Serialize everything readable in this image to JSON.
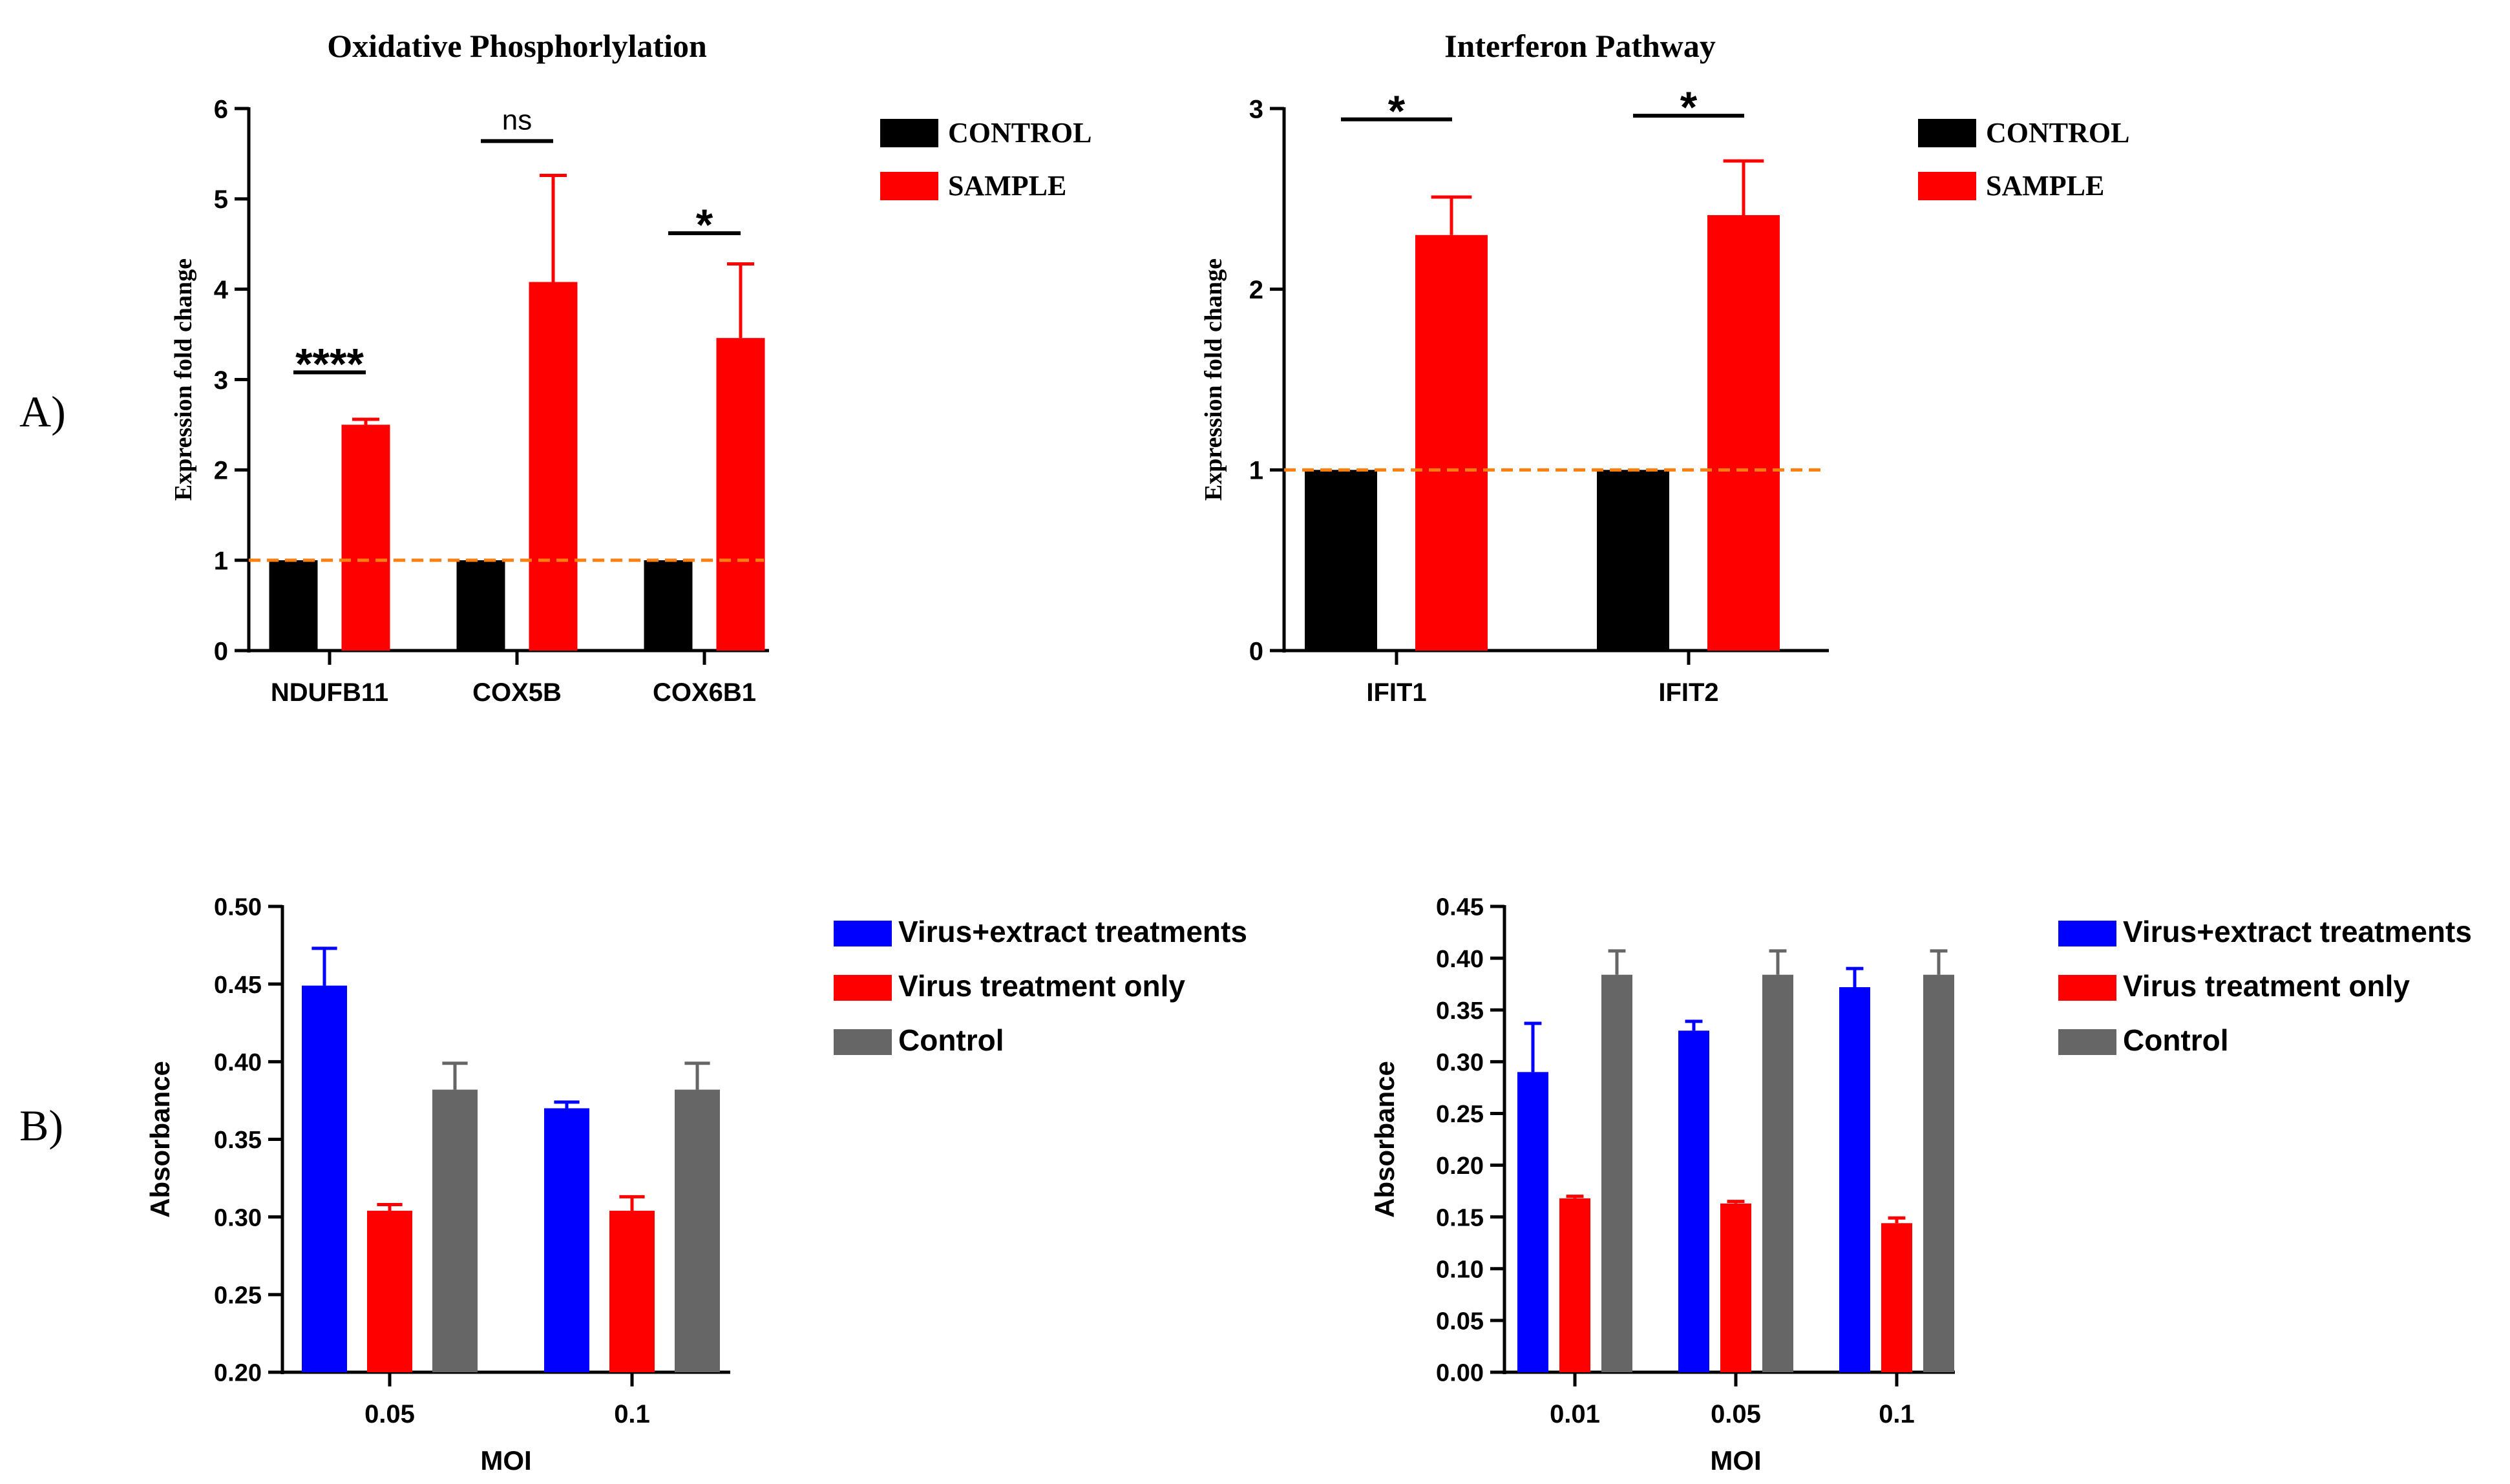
{
  "figure": {
    "panel_labels": [
      "A)",
      "B)"
    ]
  },
  "colors": {
    "control": "#000000",
    "sample": "#ff0000",
    "blue": "#0000ff",
    "red": "#ff0000",
    "gray": "#666666",
    "reference": "#ff7f0e"
  },
  "chart_data": [
    {
      "id": "oxphos",
      "type": "bar",
      "title": "Oxidative Phosphorlylation",
      "ylabel": "Expression fold change",
      "xlabel": "",
      "ylim": [
        0,
        6
      ],
      "yticks": [
        "0",
        "1",
        "2",
        "3",
        "4",
        "5",
        "6"
      ],
      "categories": [
        "NDUFB11",
        "COX5B",
        "COX6B1"
      ],
      "series": [
        {
          "name": "CONTROL",
          "values": [
            1,
            1,
            1
          ],
          "errors": [
            0,
            0,
            0
          ]
        },
        {
          "name": "SAMPLE",
          "values": [
            2.5,
            4.08,
            3.46
          ],
          "errors": [
            0.06,
            1.18,
            0.82
          ]
        }
      ],
      "reference_line": 1,
      "significance": [
        {
          "category": 0,
          "label": "****",
          "y": 3.08
        },
        {
          "category": 1,
          "label": "ns",
          "y": 5.64
        },
        {
          "category": 2,
          "label": "*",
          "y": 4.62
        }
      ]
    },
    {
      "id": "interferon",
      "type": "bar",
      "title": "Interferon Pathway",
      "ylabel": "Expression fold change",
      "xlabel": "",
      "ylim": [
        0,
        3
      ],
      "yticks": [
        "0",
        "1",
        "2",
        "3"
      ],
      "categories": [
        "IFIT1",
        "IFIT2"
      ],
      "series": [
        {
          "name": "CONTROL",
          "values": [
            1,
            1
          ],
          "errors": [
            0,
            0
          ]
        },
        {
          "name": "SAMPLE",
          "values": [
            2.3,
            2.41
          ],
          "errors": [
            0.21,
            0.3
          ]
        }
      ],
      "reference_line": 1,
      "significance": [
        {
          "category": 0,
          "label": "*",
          "y": 2.94
        },
        {
          "category": 1,
          "label": "*",
          "y": 2.96
        }
      ]
    },
    {
      "id": "absorbance-1",
      "type": "bar",
      "title": "",
      "ylabel": "Absorbance",
      "xlabel": "MOI",
      "ylim": [
        0.2,
        0.5
      ],
      "yticks": [
        "0.20",
        "0.25",
        "0.30",
        "0.35",
        "0.40",
        "0.45",
        "0.50"
      ],
      "categories": [
        "0.05",
        "0.1"
      ],
      "series": [
        {
          "name": "Virus+extract treatments",
          "values": [
            0.449,
            0.37
          ],
          "errors": [
            0.024,
            0.004
          ]
        },
        {
          "name": "Virus treatment only",
          "values": [
            0.304,
            0.304
          ],
          "errors": [
            0.004,
            0.009
          ]
        },
        {
          "name": "Control",
          "values": [
            0.382,
            0.382
          ],
          "errors": [
            0.017,
            0.017
          ]
        }
      ]
    },
    {
      "id": "absorbance-2",
      "type": "bar",
      "title": "",
      "ylabel": "Absorbance",
      "xlabel": "MOI",
      "ylim": [
        0,
        0.45
      ],
      "yticks": [
        "0.00",
        "0.05",
        "0.10",
        "0.15",
        "0.20",
        "0.25",
        "0.30",
        "0.35",
        "0.40",
        "0.45"
      ],
      "categories": [
        "0.01",
        "0.05",
        "0.1"
      ],
      "series": [
        {
          "name": "Virus+extract treatments",
          "values": [
            0.29,
            0.33,
            0.372
          ],
          "errors": [
            0.047,
            0.009,
            0.018
          ]
        },
        {
          "name": "Virus treatment only",
          "values": [
            0.168,
            0.163,
            0.144
          ],
          "errors": [
            0.002,
            0.002,
            0.005
          ]
        },
        {
          "name": "Control",
          "values": [
            0.384,
            0.384,
            0.384
          ],
          "errors": [
            0.023,
            0.023,
            0.023
          ]
        }
      ]
    }
  ]
}
